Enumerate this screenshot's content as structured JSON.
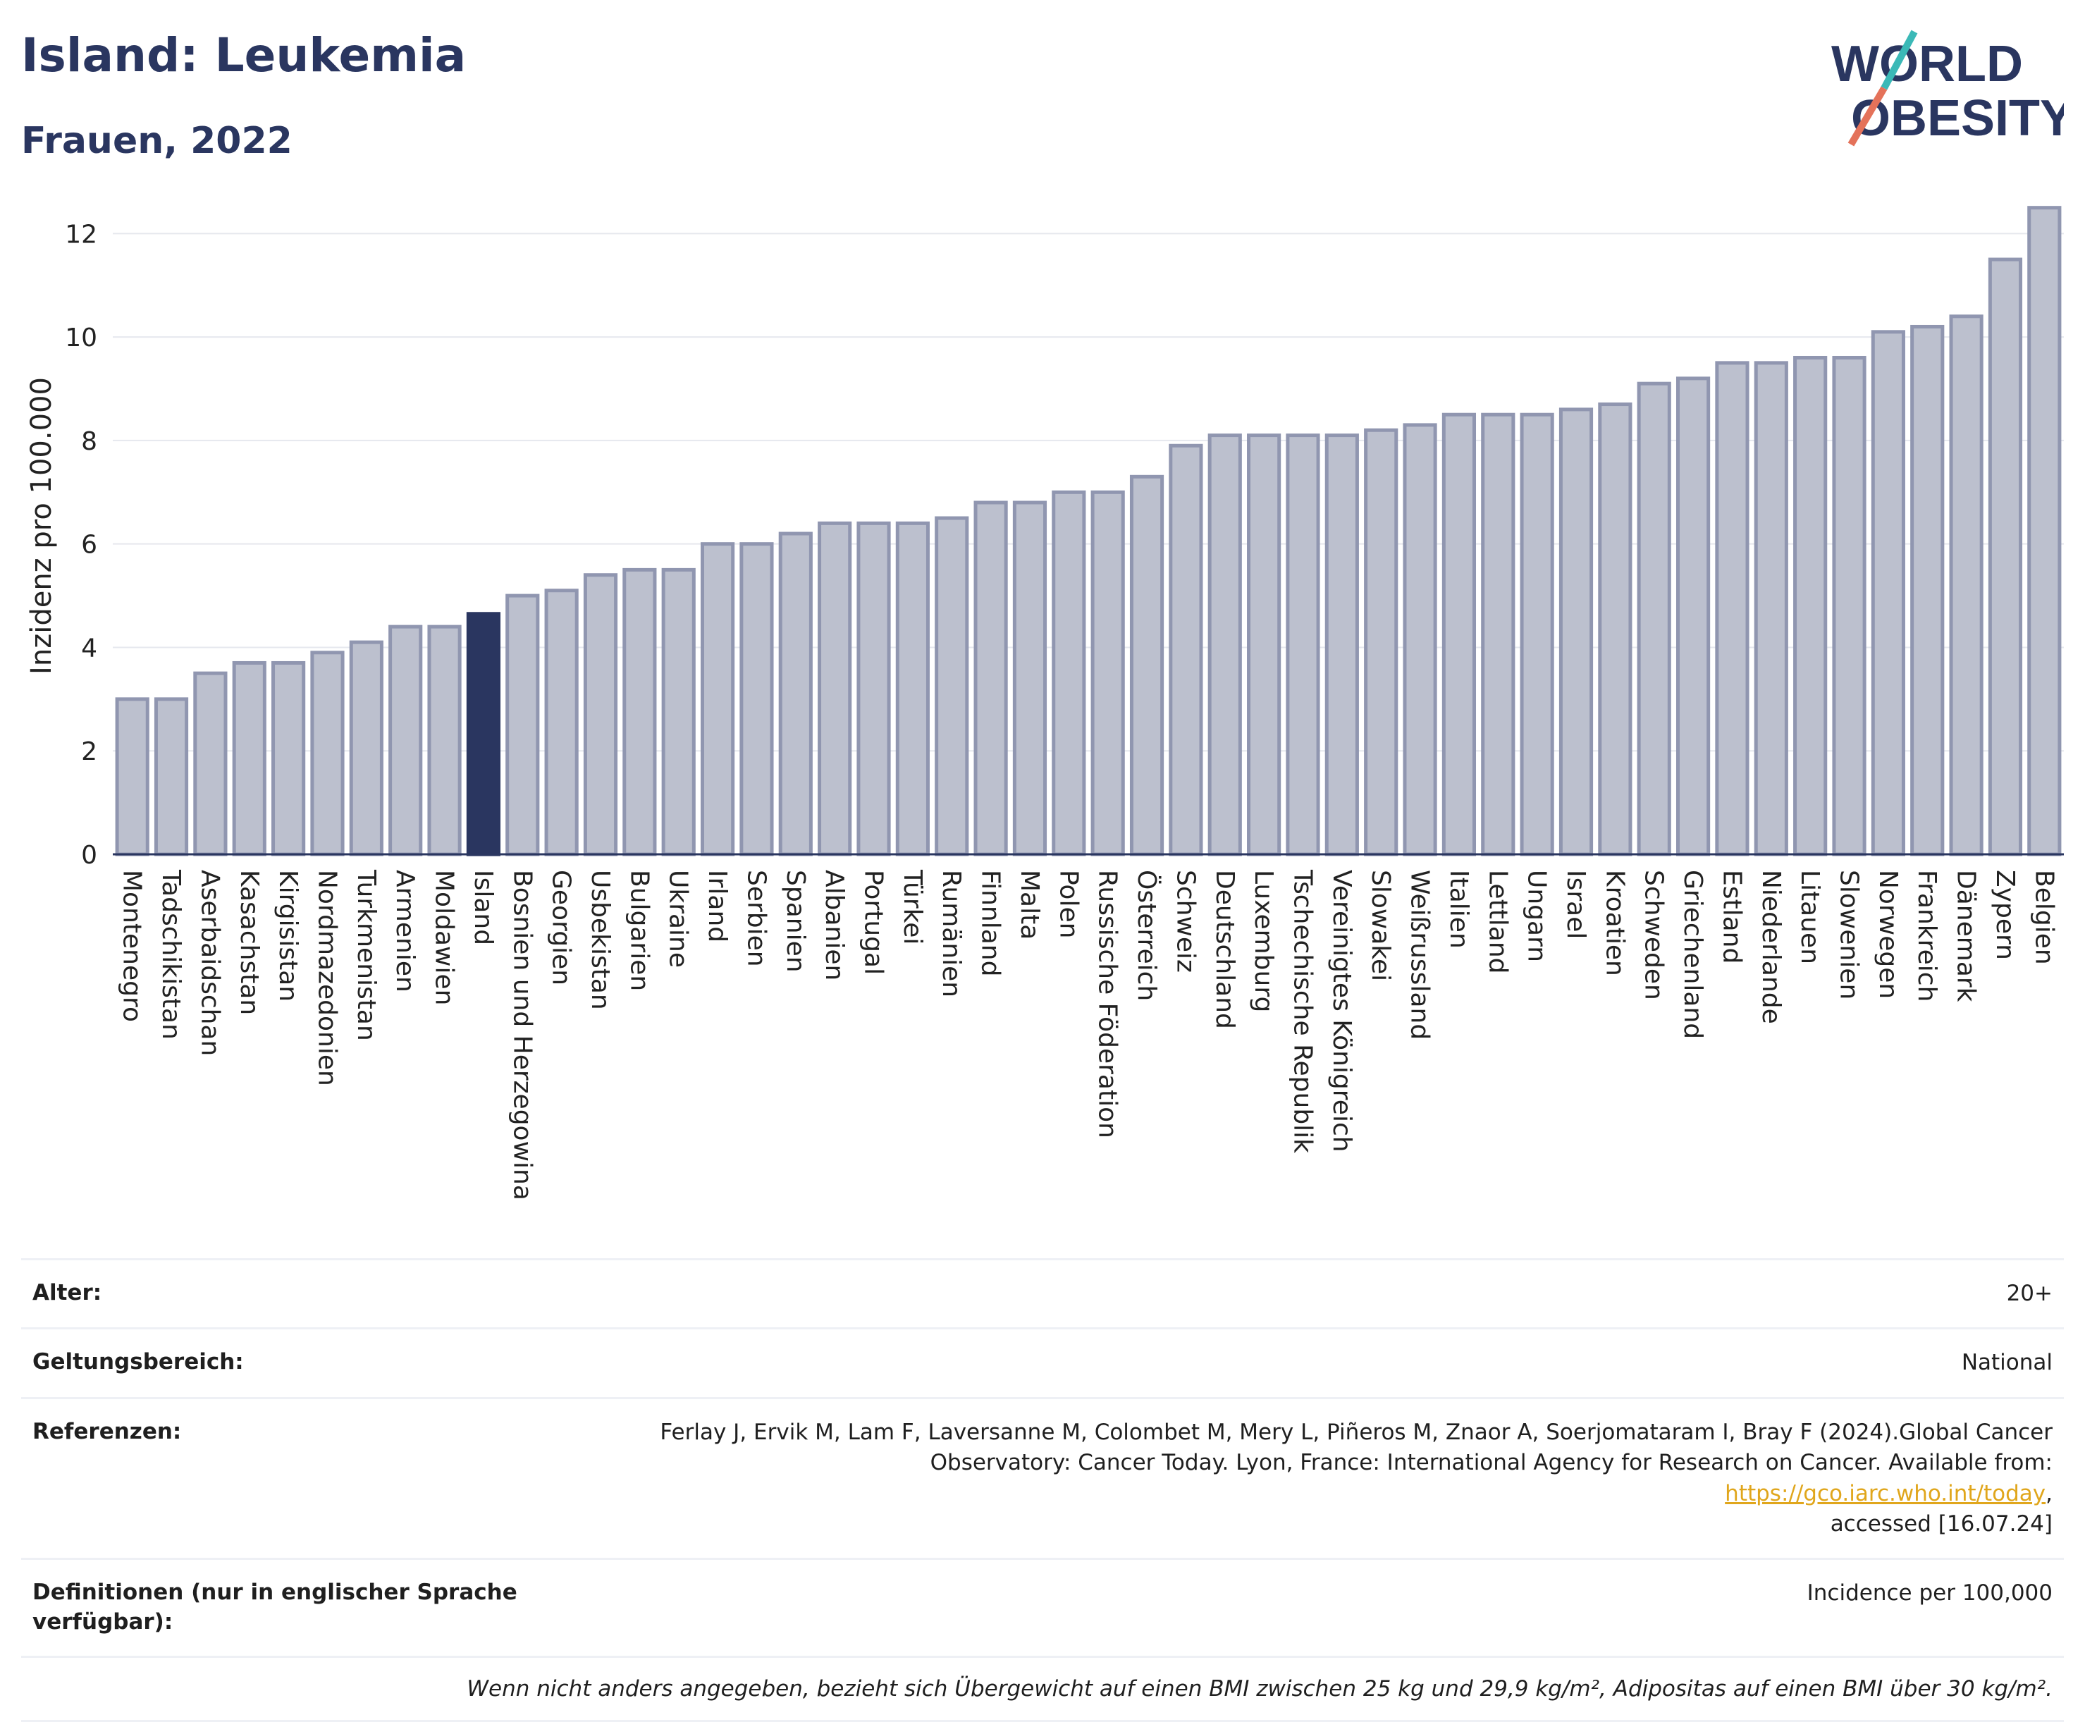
{
  "title": "Island: Leukemia",
  "subtitle": "Frauen, 2022",
  "logo": {
    "line1": "WORLD",
    "line2": "OBESITY"
  },
  "colors": {
    "highlight": "#2a3660",
    "bar": "#bcc0ce",
    "bar_stroke": "#9096b0",
    "title": "#2a3660"
  },
  "chart_data": {
    "type": "bar",
    "ylabel": "Inzidenz pro 100.000",
    "ylim": [
      0,
      12.7
    ],
    "yticks": [
      0,
      2,
      4,
      6,
      8,
      10,
      12
    ],
    "grid": true,
    "highlight": "Island",
    "categories": [
      "Montenegro",
      "Tadschikistan",
      "Aserbaidschan",
      "Kasachstan",
      "Kirgisistan",
      "Nordmazedonien",
      "Turkmenistan",
      "Armenien",
      "Moldawien",
      "Island",
      "Bosnien und Herzegowina",
      "Georgien",
      "Usbekistan",
      "Bulgarien",
      "Ukraine",
      "Irland",
      "Serbien",
      "Spanien",
      "Albanien",
      "Portugal",
      "Türkei",
      "Rumänien",
      "Finnland",
      "Malta",
      "Polen",
      "Russische Föderation",
      "Österreich",
      "Schweiz",
      "Deutschland",
      "Luxemburg",
      "Tschechische Republik",
      "Vereinigtes Königreich",
      "Slowakei",
      "Weißrussland",
      "Italien",
      "Lettland",
      "Ungarn",
      "Israel",
      "Kroatien",
      "Schweden",
      "Griechenland",
      "Estland",
      "Niederlande",
      "Litauen",
      "Slowenien",
      "Norwegen",
      "Frankreich",
      "Dänemark",
      "Zypern",
      "Belgien"
    ],
    "values": [
      3.0,
      3.0,
      3.5,
      3.7,
      3.7,
      3.9,
      4.1,
      4.4,
      4.4,
      4.65,
      5.0,
      5.1,
      5.4,
      5.5,
      5.5,
      6.0,
      6.0,
      6.2,
      6.4,
      6.4,
      6.4,
      6.5,
      6.8,
      6.8,
      7.0,
      7.0,
      7.3,
      7.9,
      8.1,
      8.1,
      8.1,
      8.1,
      8.2,
      8.3,
      8.5,
      8.5,
      8.5,
      8.6,
      8.7,
      9.1,
      9.2,
      9.5,
      9.5,
      9.6,
      9.6,
      10.1,
      10.2,
      10.4,
      11.5,
      12.5
    ]
  },
  "meta": {
    "age_label": "Alter:",
    "age_value": "20+",
    "scope_label": "Geltungsbereich:",
    "scope_value": "National",
    "ref_label": "Referenzen:",
    "ref_text1": "Ferlay J, Ervik M, Lam F, Laversanne M, Colombet M, Mery L, Piñeros M, Znaor A, Soerjomataram I, Bray F (2024).Global Cancer",
    "ref_text2": "Observatory: Cancer Today. Lyon, France: International Agency for Research on Cancer. Available from: ",
    "ref_link": "https://gco.iarc.who.int/today",
    "ref_text3": "accessed [16.07.24]",
    "def_label": "Definitionen (nur in englischer Sprache verfügbar):",
    "def_value": "Incidence per 100,000",
    "note": "Wenn nicht anders angegeben, bezieht sich Übergewicht auf einen BMI zwischen 25 kg und 29,9 kg/m², Adipositas auf einen BMI über 30 kg/m²."
  }
}
